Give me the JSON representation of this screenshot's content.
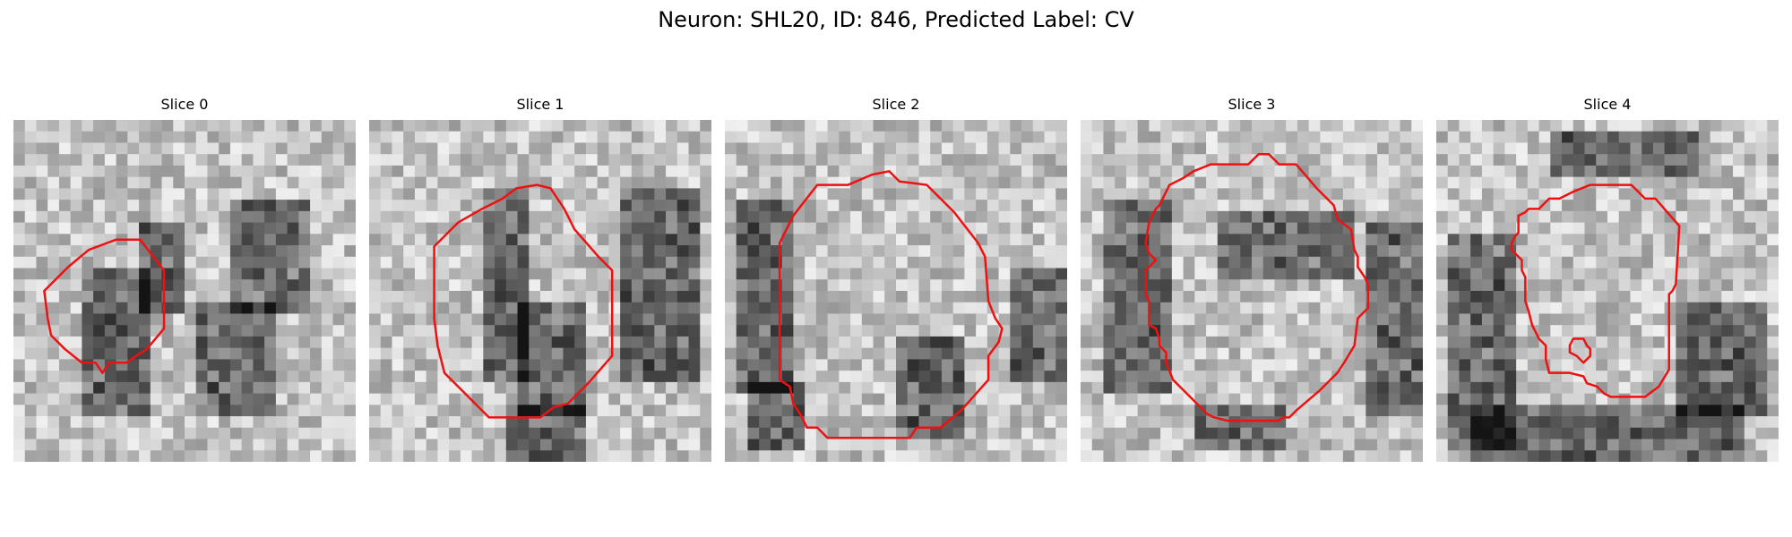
{
  "figure": {
    "title": "Neuron: SHL20, ID: 846, Predicted Label: CV"
  },
  "contour_color": "#ee1111",
  "panels": [
    {
      "title": "Slice 0",
      "contour": [
        [
          0.3,
          0.35
        ],
        [
          0.37,
          0.35
        ],
        [
          0.44,
          0.44
        ],
        [
          0.44,
          0.61
        ],
        [
          0.39,
          0.67
        ],
        [
          0.33,
          0.71
        ],
        [
          0.28,
          0.71
        ],
        [
          0.26,
          0.74
        ],
        [
          0.24,
          0.71
        ],
        [
          0.2,
          0.71
        ],
        [
          0.15,
          0.67
        ],
        [
          0.11,
          0.63
        ],
        [
          0.1,
          0.58
        ],
        [
          0.09,
          0.5
        ],
        [
          0.16,
          0.43
        ],
        [
          0.22,
          0.38
        ]
      ],
      "shading": [
        [
          0.36,
          0.3,
          0.14,
          0.25
        ],
        [
          0.62,
          0.25,
          0.25,
          0.3
        ],
        [
          0.2,
          0.45,
          0.2,
          0.4
        ],
        [
          0.55,
          0.55,
          0.2,
          0.3
        ]
      ]
    },
    {
      "title": "Slice 1",
      "contour": [
        [
          0.49,
          0.19
        ],
        [
          0.53,
          0.2
        ],
        [
          0.57,
          0.26
        ],
        [
          0.6,
          0.32
        ],
        [
          0.67,
          0.4
        ],
        [
          0.71,
          0.44
        ],
        [
          0.71,
          0.69
        ],
        [
          0.64,
          0.77
        ],
        [
          0.58,
          0.83
        ],
        [
          0.54,
          0.84
        ],
        [
          0.5,
          0.87
        ],
        [
          0.35,
          0.87
        ],
        [
          0.27,
          0.79
        ],
        [
          0.22,
          0.74
        ],
        [
          0.2,
          0.66
        ],
        [
          0.19,
          0.58
        ],
        [
          0.19,
          0.37
        ],
        [
          0.26,
          0.3
        ],
        [
          0.33,
          0.26
        ],
        [
          0.39,
          0.23
        ],
        [
          0.43,
          0.2
        ]
      ],
      "shading": [
        [
          0.32,
          0.2,
          0.16,
          0.55
        ],
        [
          0.75,
          0.2,
          0.2,
          0.55
        ],
        [
          0.4,
          0.85,
          0.22,
          0.16
        ],
        [
          0.45,
          0.55,
          0.18,
          0.3
        ]
      ]
    },
    {
      "title": "Slice 2",
      "contour": [
        [
          0.43,
          0.16
        ],
        [
          0.48,
          0.15
        ],
        [
          0.51,
          0.18
        ],
        [
          0.59,
          0.19
        ],
        [
          0.67,
          0.27
        ],
        [
          0.74,
          0.36
        ],
        [
          0.76,
          0.4
        ],
        [
          0.77,
          0.53
        ],
        [
          0.79,
          0.58
        ],
        [
          0.81,
          0.61
        ],
        [
          0.8,
          0.65
        ],
        [
          0.77,
          0.69
        ],
        [
          0.77,
          0.76
        ],
        [
          0.69,
          0.85
        ],
        [
          0.63,
          0.9
        ],
        [
          0.56,
          0.9
        ],
        [
          0.54,
          0.93
        ],
        [
          0.3,
          0.93
        ],
        [
          0.27,
          0.9
        ],
        [
          0.24,
          0.9
        ],
        [
          0.22,
          0.86
        ],
        [
          0.2,
          0.83
        ],
        [
          0.19,
          0.78
        ],
        [
          0.16,
          0.76
        ],
        [
          0.16,
          0.36
        ],
        [
          0.2,
          0.28
        ],
        [
          0.27,
          0.19
        ],
        [
          0.36,
          0.19
        ]
      ],
      "shading": [
        [
          0.05,
          0.25,
          0.15,
          0.55
        ],
        [
          0.08,
          0.78,
          0.14,
          0.18
        ],
        [
          0.85,
          0.45,
          0.15,
          0.3
        ],
        [
          0.5,
          0.62,
          0.2,
          0.3
        ]
      ]
    },
    {
      "title": "Slice 3",
      "contour": [
        [
          0.52,
          0.1
        ],
        [
          0.55,
          0.1
        ],
        [
          0.58,
          0.13
        ],
        [
          0.63,
          0.13
        ],
        [
          0.69,
          0.2
        ],
        [
          0.74,
          0.25
        ],
        [
          0.75,
          0.29
        ],
        [
          0.79,
          0.32
        ],
        [
          0.8,
          0.38
        ],
        [
          0.81,
          0.4
        ],
        [
          0.81,
          0.43
        ],
        [
          0.83,
          0.46
        ],
        [
          0.84,
          0.48
        ],
        [
          0.84,
          0.55
        ],
        [
          0.81,
          0.58
        ],
        [
          0.8,
          0.66
        ],
        [
          0.77,
          0.71
        ],
        [
          0.75,
          0.74
        ],
        [
          0.7,
          0.79
        ],
        [
          0.63,
          0.85
        ],
        [
          0.61,
          0.87
        ],
        [
          0.59,
          0.87
        ],
        [
          0.58,
          0.88
        ],
        [
          0.52,
          0.88
        ],
        [
          0.43,
          0.88
        ],
        [
          0.39,
          0.87
        ],
        [
          0.37,
          0.86
        ],
        [
          0.33,
          0.82
        ],
        [
          0.31,
          0.8
        ],
        [
          0.29,
          0.78
        ],
        [
          0.27,
          0.76
        ],
        [
          0.25,
          0.71
        ],
        [
          0.25,
          0.68
        ],
        [
          0.23,
          0.66
        ],
        [
          0.23,
          0.64
        ],
        [
          0.22,
          0.61
        ],
        [
          0.2,
          0.6
        ],
        [
          0.2,
          0.53
        ],
        [
          0.19,
          0.51
        ],
        [
          0.19,
          0.44
        ],
        [
          0.22,
          0.41
        ],
        [
          0.2,
          0.39
        ],
        [
          0.19,
          0.36
        ],
        [
          0.2,
          0.3
        ],
        [
          0.22,
          0.26
        ],
        [
          0.23,
          0.25
        ],
        [
          0.25,
          0.21
        ],
        [
          0.26,
          0.19
        ],
        [
          0.3,
          0.17
        ],
        [
          0.33,
          0.15
        ],
        [
          0.38,
          0.13
        ],
        [
          0.49,
          0.13
        ]
      ],
      "shading": [
        [
          0.08,
          0.25,
          0.18,
          0.55
        ],
        [
          0.85,
          0.3,
          0.15,
          0.55
        ],
        [
          0.4,
          0.28,
          0.4,
          0.18
        ],
        [
          0.35,
          0.85,
          0.25,
          0.13
        ]
      ]
    },
    {
      "title": "Slice 4",
      "contour": [
        [
          0.45,
          0.19
        ],
        [
          0.57,
          0.19
        ],
        [
          0.61,
          0.23
        ],
        [
          0.64,
          0.23
        ],
        [
          0.71,
          0.31
        ],
        [
          0.7,
          0.48
        ],
        [
          0.69,
          0.5
        ],
        [
          0.68,
          0.51
        ],
        [
          0.68,
          0.73
        ],
        [
          0.65,
          0.78
        ],
        [
          0.61,
          0.81
        ],
        [
          0.59,
          0.81
        ],
        [
          0.58,
          0.81
        ],
        [
          0.51,
          0.81
        ],
        [
          0.49,
          0.8
        ],
        [
          0.47,
          0.78
        ],
        [
          0.44,
          0.77
        ],
        [
          0.43,
          0.75
        ],
        [
          0.39,
          0.74
        ],
        [
          0.33,
          0.74
        ],
        [
          0.32,
          0.7
        ],
        [
          0.32,
          0.66
        ],
        [
          0.3,
          0.64
        ],
        [
          0.29,
          0.62
        ],
        [
          0.28,
          0.6
        ],
        [
          0.27,
          0.56
        ],
        [
          0.26,
          0.53
        ],
        [
          0.26,
          0.49
        ],
        [
          0.26,
          0.46
        ],
        [
          0.25,
          0.44
        ],
        [
          0.25,
          0.41
        ],
        [
          0.22,
          0.38
        ],
        [
          0.22,
          0.36
        ],
        [
          0.23,
          0.34
        ],
        [
          0.24,
          0.33
        ],
        [
          0.24,
          0.32
        ],
        [
          0.24,
          0.3
        ],
        [
          0.24,
          0.28
        ],
        [
          0.26,
          0.27
        ],
        [
          0.27,
          0.26
        ],
        [
          0.29,
          0.26
        ],
        [
          0.3,
          0.26
        ],
        [
          0.31,
          0.25
        ],
        [
          0.33,
          0.23
        ],
        [
          0.36,
          0.23
        ],
        [
          0.38,
          0.22
        ],
        [
          0.4,
          0.21
        ]
      ],
      "inner": [
        [
          0.4,
          0.64
        ],
        [
          0.43,
          0.64
        ],
        [
          0.44,
          0.66
        ],
        [
          0.45,
          0.67
        ],
        [
          0.45,
          0.69
        ],
        [
          0.43,
          0.71
        ],
        [
          0.41,
          0.69
        ],
        [
          0.39,
          0.68
        ],
        [
          0.39,
          0.66
        ]
      ],
      "shading": [
        [
          0.05,
          0.35,
          0.18,
          0.6
        ],
        [
          0.1,
          0.85,
          0.8,
          0.14
        ],
        [
          0.7,
          0.55,
          0.25,
          0.3
        ],
        [
          0.35,
          0.05,
          0.4,
          0.12
        ]
      ]
    }
  ]
}
